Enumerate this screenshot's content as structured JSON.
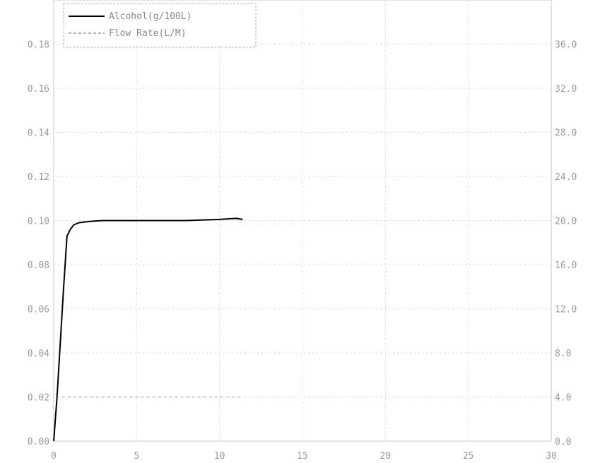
{
  "chart_data": {
    "type": "line",
    "title": "",
    "xlabel": "",
    "ylabel": "",
    "y2label": "",
    "xlim": [
      0,
      30
    ],
    "ylim": [
      0.0,
      0.2
    ],
    "y2lim": [
      0.0,
      40.0
    ],
    "grid": true,
    "legend_position": "top-left",
    "x_ticks": [
      "0",
      "5",
      "10",
      "15",
      "20",
      "25",
      "30"
    ],
    "y_ticks": [
      "0.00",
      "0.02",
      "0.04",
      "0.06",
      "0.08",
      "0.10",
      "0.12",
      "0.14",
      "0.16",
      "0.18"
    ],
    "y2_ticks": [
      "0.0",
      "4.0",
      "8.0",
      "12.0",
      "16.0",
      "20.0",
      "24.0",
      "28.0",
      "32.0",
      "36.0"
    ],
    "series": [
      {
        "name": "Alcohol(g/100L)",
        "axis": "left",
        "style": "solid",
        "color": "#000000",
        "x": [
          0,
          0.2,
          0.4,
          0.6,
          0.8,
          1.0,
          1.2,
          1.5,
          2.0,
          2.5,
          3.0,
          4.0,
          5.0,
          6.0,
          8.0,
          10.0,
          11.0,
          11.4
        ],
        "y": [
          0.0,
          0.02,
          0.045,
          0.07,
          0.093,
          0.096,
          0.098,
          0.099,
          0.0995,
          0.0998,
          0.1,
          0.1,
          0.1,
          0.1,
          0.1,
          0.1005,
          0.101,
          0.1005
        ]
      },
      {
        "name": "Flow Rate(L/M)",
        "axis": "right",
        "style": "dashed",
        "color": "#bdbdbd",
        "x": [
          0.5,
          2,
          4,
          6,
          8,
          10,
          11.4
        ],
        "y": [
          4.0,
          4.0,
          4.0,
          4.0,
          4.0,
          4.0,
          4.0
        ]
      }
    ]
  }
}
